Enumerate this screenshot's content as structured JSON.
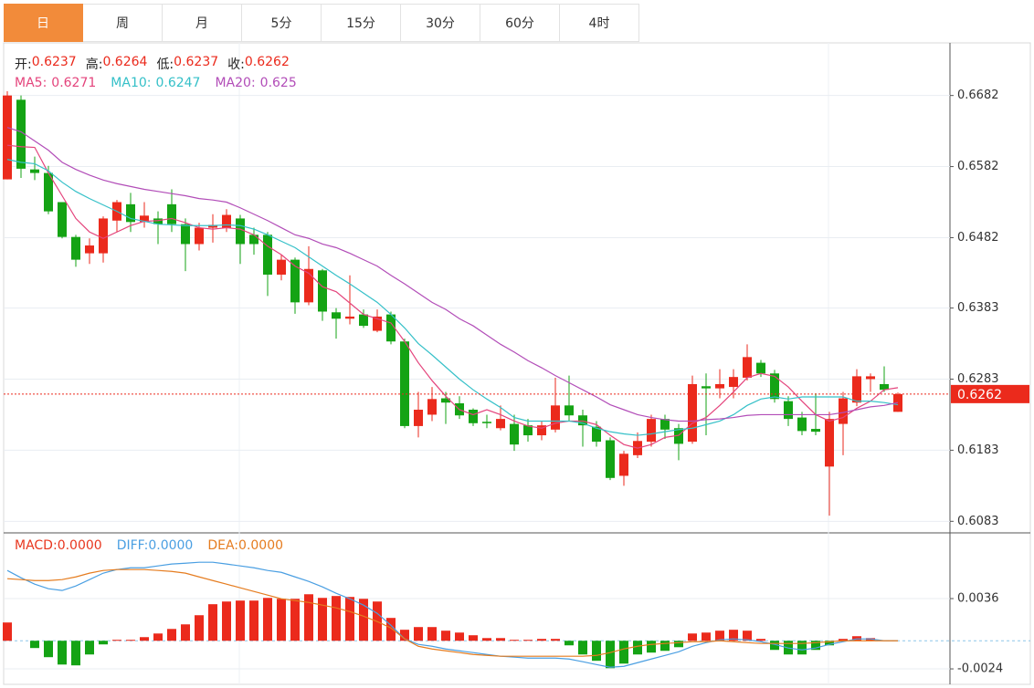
{
  "tabs": [
    "日",
    "周",
    "月",
    "5分",
    "15分",
    "30分",
    "60分",
    "4时"
  ],
  "active_tab": "日",
  "chart_data": [
    {
      "type": "candlestick",
      "ohlc_legend": [
        "开:",
        "高:",
        "低:",
        "收:"
      ],
      "up_color": "#eb2a1c",
      "down_color": "#14a314",
      "ylim": [
        0.6068,
        0.6756
      ],
      "yticks": [
        0.6682,
        0.6582,
        0.6482,
        0.6383,
        0.6283,
        0.6183,
        0.6083
      ],
      "grid": true,
      "last_price": 0.6262,
      "last_price_color": "#eb2a1c",
      "open": [
        0.6564,
        0.6676,
        0.6578,
        0.6573,
        0.6532,
        0.6483,
        0.646,
        0.646,
        0.6506,
        0.6529,
        0.6504,
        0.6509,
        0.6529,
        0.6501,
        0.6473,
        0.6496,
        0.6496,
        0.6509,
        0.6486,
        0.6486,
        0.643,
        0.6451,
        0.6391,
        0.6436,
        0.6377,
        0.6368,
        0.6374,
        0.6351,
        0.6374,
        0.6336,
        0.6217,
        0.6233,
        0.6256,
        0.6249,
        0.624,
        0.6223,
        0.6214,
        0.622,
        0.6218,
        0.6204,
        0.6212,
        0.6246,
        0.6232,
        0.6216,
        0.6197,
        0.6147,
        0.6176,
        0.6195,
        0.6227,
        0.6214,
        0.6195,
        0.6273,
        0.627,
        0.6272,
        0.6285,
        0.6306,
        0.6291,
        0.6252,
        0.6229,
        0.6213,
        0.616,
        0.622,
        0.625,
        0.6283,
        0.6276,
        0.6237
      ],
      "high": [
        0.6688,
        0.6682,
        0.6596,
        0.6583,
        0.6532,
        0.6486,
        0.6481,
        0.6512,
        0.6535,
        0.6545,
        0.6532,
        0.6519,
        0.655,
        0.6509,
        0.6503,
        0.6515,
        0.6522,
        0.6514,
        0.6496,
        0.649,
        0.6458,
        0.6454,
        0.647,
        0.6438,
        0.6383,
        0.6429,
        0.6381,
        0.6381,
        0.6378,
        0.634,
        0.6265,
        0.6272,
        0.6265,
        0.6259,
        0.6242,
        0.6233,
        0.6246,
        0.6233,
        0.6227,
        0.6224,
        0.6285,
        0.6288,
        0.624,
        0.6224,
        0.6201,
        0.6182,
        0.6208,
        0.6233,
        0.6233,
        0.622,
        0.6288,
        0.6291,
        0.6297,
        0.6297,
        0.6332,
        0.631,
        0.6296,
        0.6259,
        0.6237,
        0.6263,
        0.6237,
        0.6265,
        0.6297,
        0.6291,
        0.6301,
        0.6264
      ],
      "low": [
        0.6564,
        0.6566,
        0.6563,
        0.6515,
        0.6481,
        0.6441,
        0.6445,
        0.6447,
        0.649,
        0.649,
        0.6496,
        0.6473,
        0.649,
        0.6435,
        0.6464,
        0.6475,
        0.649,
        0.6445,
        0.6458,
        0.64,
        0.6422,
        0.6375,
        0.6387,
        0.6365,
        0.634,
        0.636,
        0.6355,
        0.6349,
        0.6332,
        0.6214,
        0.6201,
        0.6224,
        0.622,
        0.6227,
        0.6217,
        0.6214,
        0.6211,
        0.6182,
        0.6195,
        0.6197,
        0.6208,
        0.6224,
        0.6188,
        0.6188,
        0.6141,
        0.6133,
        0.6172,
        0.6188,
        0.6199,
        0.6169,
        0.6192,
        0.6204,
        0.6256,
        0.6256,
        0.6281,
        0.6286,
        0.625,
        0.6217,
        0.6204,
        0.6204,
        0.6091,
        0.6176,
        0.6245,
        0.6265,
        0.6265,
        0.6237
      ],
      "close": [
        0.6682,
        0.6579,
        0.6573,
        0.6519,
        0.6483,
        0.6451,
        0.6471,
        0.6509,
        0.6532,
        0.6504,
        0.6513,
        0.6501,
        0.6501,
        0.6473,
        0.6496,
        0.65,
        0.6514,
        0.6473,
        0.6473,
        0.643,
        0.6451,
        0.6391,
        0.6438,
        0.6378,
        0.6368,
        0.6371,
        0.6358,
        0.6371,
        0.6336,
        0.6217,
        0.624,
        0.6255,
        0.625,
        0.6232,
        0.6221,
        0.6221,
        0.6227,
        0.6191,
        0.6204,
        0.6218,
        0.6246,
        0.6232,
        0.6218,
        0.6195,
        0.6144,
        0.6178,
        0.6196,
        0.6227,
        0.6212,
        0.6192,
        0.6276,
        0.627,
        0.6276,
        0.6286,
        0.6314,
        0.6291,
        0.6255,
        0.6227,
        0.621,
        0.6209,
        0.6227,
        0.6256,
        0.6287,
        0.6287,
        0.6268,
        0.6262
      ],
      "series": [
        {
          "name": "MA5:",
          "color": "#e4447c",
          "values": [
            0.6612,
            0.661,
            0.6609,
            0.6573,
            0.6541,
            0.6509,
            0.649,
            0.6481,
            0.649,
            0.6499,
            0.6505,
            0.6506,
            0.6509,
            0.6503,
            0.6496,
            0.6494,
            0.6496,
            0.6494,
            0.6486,
            0.647,
            0.6458,
            0.6442,
            0.6432,
            0.6413,
            0.6406,
            0.639,
            0.6374,
            0.6368,
            0.6362,
            0.6336,
            0.6306,
            0.6281,
            0.6259,
            0.624,
            0.6233,
            0.624,
            0.6233,
            0.6224,
            0.6217,
            0.6214,
            0.6221,
            0.6224,
            0.6224,
            0.6219,
            0.6204,
            0.6191,
            0.6186,
            0.6191,
            0.6201,
            0.6204,
            0.6221,
            0.6229,
            0.6246,
            0.6265,
            0.6285,
            0.6291,
            0.6287,
            0.6272,
            0.6252,
            0.6233,
            0.6224,
            0.6229,
            0.6242,
            0.6252,
            0.6268,
            0.6271
          ]
        },
        {
          "name": "MA10:",
          "color": "#35c0c8",
          "values": [
            0.6592,
            0.6588,
            0.6586,
            0.6576,
            0.656,
            0.6547,
            0.6537,
            0.6528,
            0.6519,
            0.6509,
            0.6505,
            0.6501,
            0.65,
            0.6499,
            0.6499,
            0.6499,
            0.65,
            0.6499,
            0.6494,
            0.6486,
            0.6477,
            0.6468,
            0.6455,
            0.6442,
            0.6429,
            0.6417,
            0.6404,
            0.6391,
            0.6374,
            0.6355,
            0.6333,
            0.6317,
            0.63,
            0.6283,
            0.6268,
            0.6255,
            0.6243,
            0.6229,
            0.6224,
            0.6224,
            0.6224,
            0.6224,
            0.6221,
            0.6214,
            0.6209,
            0.6206,
            0.6204,
            0.6206,
            0.6209,
            0.6212,
            0.6214,
            0.6219,
            0.6224,
            0.6233,
            0.6246,
            0.6255,
            0.6258,
            0.6255,
            0.6258,
            0.6258,
            0.6258,
            0.6258,
            0.6252,
            0.6252,
            0.625,
            0.6247
          ]
        },
        {
          "name": "MA20:",
          "color": "#b24db8",
          "values": [
            0.6637,
            0.6631,
            0.6618,
            0.6605,
            0.6588,
            0.6578,
            0.657,
            0.6563,
            0.6558,
            0.6554,
            0.655,
            0.6547,
            0.6544,
            0.6541,
            0.6537,
            0.6535,
            0.6532,
            0.6524,
            0.6515,
            0.6506,
            0.6496,
            0.6486,
            0.6481,
            0.6473,
            0.6468,
            0.646,
            0.6451,
            0.6442,
            0.6429,
            0.6417,
            0.6404,
            0.6391,
            0.6381,
            0.6368,
            0.6358,
            0.6345,
            0.6332,
            0.6321,
            0.6309,
            0.6299,
            0.6288,
            0.6278,
            0.6268,
            0.6258,
            0.6247,
            0.624,
            0.6233,
            0.6229,
            0.6226,
            0.6224,
            0.6224,
            0.6226,
            0.6227,
            0.6229,
            0.6232,
            0.6233,
            0.6233,
            0.6233,
            0.6233,
            0.6233,
            0.6233,
            0.6236,
            0.624,
            0.6244,
            0.6246,
            0.625
          ]
        }
      ]
    },
    {
      "type": "macd",
      "ylim": [
        -0.00372,
        0.00913
      ],
      "yticks": [
        0.0036,
        -0.0024
      ],
      "zero_color": "#8ec5e8",
      "up_color": "#eb2a1c",
      "down_color": "#14a314",
      "series": [
        {
          "name": "MACD:",
          "color": "#e8361e",
          "kind": "bar",
          "legend_label": "0.0000",
          "values": [
            0.00156,
            0,
            -0.00062,
            -0.0014,
            -0.00203,
            -0.0021,
            -0.00117,
            -0.00031,
            8e-05,
            8e-05,
            0.00031,
            0.00062,
            0.00101,
            0.0014,
            0.00218,
            0.00312,
            0.00335,
            0.00343,
            0.00343,
            0.00366,
            0.00358,
            0.00358,
            0.00397,
            0.00366,
            0.00382,
            0.00374,
            0.00358,
            0.00335,
            0.00195,
            0.00094,
            0.00117,
            0.00117,
            0.00086,
            0.0007,
            0.00047,
            0.00023,
            0.00023,
            8e-05,
            8e-05,
            0.00016,
            0.00016,
            -0.00039,
            -0.00117,
            -0.00171,
            -0.00234,
            -0.00195,
            -0.00117,
            -0.00101,
            -0.00086,
            -0.00055,
            0.00062,
            0.0007,
            0.00086,
            0.00094,
            0.00086,
            0.00016,
            -0.00078,
            -0.00117,
            -0.00117,
            -0.00078,
            -0.00039,
            0.00016,
            0.00039,
            0.00023,
            0,
            0
          ]
        },
        {
          "name": "DIFF:",
          "color": "#4a9fe2",
          "kind": "line",
          "legend_label": "0.0000",
          "values": [
            0.006,
            0.00538,
            0.00483,
            0.00444,
            0.00429,
            0.00468,
            0.00522,
            0.00577,
            0.00608,
            0.00623,
            0.00623,
            0.00639,
            0.00655,
            0.00662,
            0.0067,
            0.0067,
            0.00655,
            0.00639,
            0.00623,
            0.006,
            0.00584,
            0.00545,
            0.00507,
            0.0046,
            0.00405,
            0.00358,
            0.00304,
            0.00234,
            0.00132,
            0.00016,
            -0.00031,
            -0.00047,
            -0.0007,
            -0.00086,
            -0.00101,
            -0.00117,
            -0.00132,
            -0.0014,
            -0.00148,
            -0.00148,
            -0.00148,
            -0.00156,
            -0.00179,
            -0.00203,
            -0.00226,
            -0.00218,
            -0.00187,
            -0.00156,
            -0.00125,
            -0.00094,
            -0.00047,
            -0.00016,
            8e-05,
            0.00016,
            8e-05,
            -8e-05,
            -0.00031,
            -0.00062,
            -0.00078,
            -0.00062,
            -0.00031,
            -8e-05,
            0.00016,
            0.00016,
            0,
            0
          ]
        },
        {
          "name": "DEA:",
          "color": "#e57c1f",
          "kind": "line",
          "legend_label": "0.0000",
          "values": [
            0.0053,
            0.00522,
            0.00514,
            0.00514,
            0.00522,
            0.00545,
            0.00577,
            0.006,
            0.00608,
            0.00608,
            0.00608,
            0.006,
            0.00592,
            0.00577,
            0.00545,
            0.00514,
            0.00483,
            0.00452,
            0.00421,
            0.0039,
            0.00358,
            0.00343,
            0.00327,
            0.00304,
            0.00281,
            0.00249,
            0.0021,
            0.00164,
            0.00109,
            0.00016,
            -0.00047,
            -0.0007,
            -0.00086,
            -0.00101,
            -0.00117,
            -0.00125,
            -0.00132,
            -0.00132,
            -0.00132,
            -0.00132,
            -0.00132,
            -0.00132,
            -0.00132,
            -0.00125,
            -0.00101,
            -0.0007,
            -0.00047,
            -0.00031,
            -0.00023,
            -0.00016,
            -8e-05,
            -8e-05,
            0,
            -8e-05,
            -0.00016,
            -0.00023,
            -0.00023,
            -0.00023,
            -0.00023,
            -0.00016,
            -8e-05,
            0,
            0,
            0,
            0,
            0
          ]
        }
      ]
    }
  ]
}
